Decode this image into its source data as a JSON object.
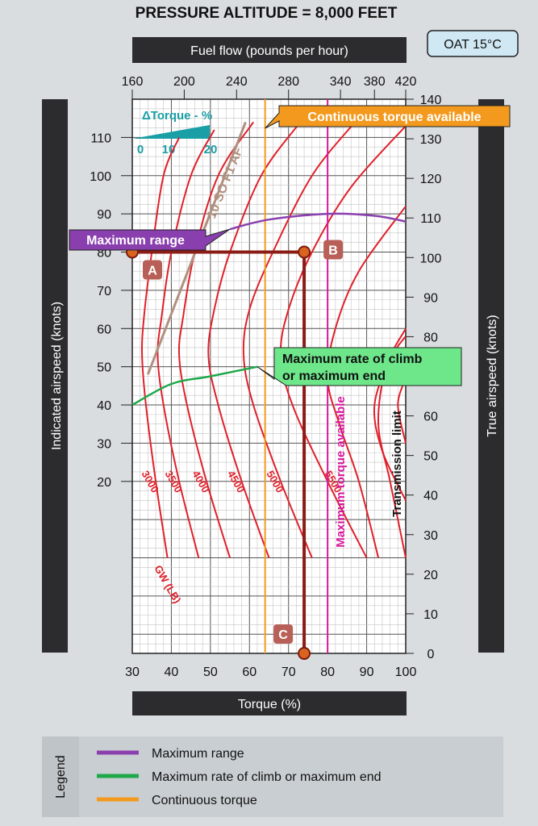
{
  "colors": {
    "background": "#d9dde0",
    "plot_background": "#ffffff",
    "dark_bar": "#2c2c2e",
    "gw_curve": "#e0202a",
    "max_range": "#8a3fae",
    "max_climb": "#1ea84a",
    "continuous_torque": "#f39a1e",
    "max_torque": "#d6199b",
    "trend_line": "#b09080",
    "path": "#8a1c16",
    "teal": "#1a9fa6",
    "oat_box": "#cfe8f3",
    "callout_climb": "#6ee68a"
  },
  "chart_data": {
    "type": "line",
    "title": "PRESSURE ALTITUDE = 8,000 FEET",
    "oat": "OAT 15°C",
    "top_axis_label": "Fuel flow (pounds per hour)",
    "bottom_axis_label": "Torque (%)",
    "left_axis_label": "Indicated airspeed (knots)",
    "right_axis_label": "True airspeed (knots)",
    "transmission_limit_label": "Transmission limit",
    "x_range": [
      30,
      100
    ],
    "x_ticks": [
      30,
      40,
      50,
      60,
      70,
      80,
      90,
      100
    ],
    "fuel_flow_ticks": [
      {
        "value": "160",
        "torque": 30
      },
      {
        "value": "200",
        "torque": 43.3
      },
      {
        "value": "240",
        "torque": 56.7
      },
      {
        "value": "280",
        "torque": 70
      },
      {
        "value": "340",
        "torque": 83.3
      },
      {
        "value": "380",
        "torque": 92
      },
      {
        "value": "420",
        "torque": 100
      }
    ],
    "ias_range": [
      -25,
      120
    ],
    "ias_ticks": [
      20,
      30,
      40,
      50,
      60,
      70,
      80,
      90,
      100,
      110
    ],
    "tas_range": [
      0,
      140
    ],
    "tas_ticks": [
      0,
      10,
      20,
      30,
      40,
      50,
      60,
      70,
      80,
      90,
      100,
      110,
      120,
      130,
      140
    ],
    "delta_torque": {
      "label": "ΔTorque - %",
      "ticks": [
        "0",
        "10",
        "20"
      ]
    },
    "gw_label": "GW (LB)",
    "gw_curves": [
      {
        "label": "3000",
        "points": [
          [
            39,
            0
          ],
          [
            36,
            20
          ],
          [
            33.5,
            40
          ],
          [
            32.5,
            53
          ],
          [
            33,
            63
          ],
          [
            35,
            80
          ],
          [
            38,
            100
          ],
          [
            42,
            110
          ]
        ]
      },
      {
        "label": "3500",
        "points": [
          [
            47,
            0
          ],
          [
            42,
            20
          ],
          [
            38,
            40
          ],
          [
            36.5,
            53
          ],
          [
            37.5,
            63
          ],
          [
            40,
            80
          ],
          [
            45,
            100
          ],
          [
            51,
            112
          ]
        ]
      },
      {
        "label": "4000",
        "points": [
          [
            55,
            0
          ],
          [
            49,
            20
          ],
          [
            44,
            40
          ],
          [
            42,
            53
          ],
          [
            43,
            63
          ],
          [
            46,
            80
          ],
          [
            52,
            100
          ],
          [
            61,
            114
          ]
        ]
      },
      {
        "label": "4500",
        "points": [
          [
            65,
            0
          ],
          [
            58,
            20
          ],
          [
            52,
            40
          ],
          [
            49.5,
            53
          ],
          [
            51,
            65
          ],
          [
            55,
            80
          ],
          [
            63,
            100
          ],
          [
            73,
            114
          ]
        ]
      },
      {
        "label": "5000",
        "points": [
          [
            76,
            0
          ],
          [
            68,
            20
          ],
          [
            61,
            40
          ],
          [
            58.5,
            53
          ],
          [
            60,
            65
          ],
          [
            66,
            80
          ],
          [
            76,
            100
          ],
          [
            87,
            114
          ]
        ]
      },
      {
        "label": "5500",
        "points": [
          [
            90,
            0
          ],
          [
            80,
            20
          ],
          [
            71,
            40
          ],
          [
            68,
            53
          ],
          [
            70,
            65
          ],
          [
            76,
            80
          ],
          [
            86,
            97
          ],
          [
            100,
            113
          ]
        ]
      }
    ],
    "gw_curves_unlabeled": [
      {
        "points": [
          [
            93,
            0
          ],
          [
            88,
            20
          ],
          [
            83,
            35
          ],
          [
            80,
            47
          ],
          [
            82,
            60
          ],
          [
            88,
            75
          ],
          [
            100,
            92
          ]
        ]
      },
      {
        "points": [
          [
            100,
            0
          ],
          [
            96,
            20
          ],
          [
            93,
            35
          ],
          [
            95,
            50
          ],
          [
            100,
            60
          ]
        ]
      },
      {
        "points": [
          [
            100,
            15
          ],
          [
            94,
            28
          ],
          [
            92,
            40
          ],
          [
            96,
            52
          ],
          [
            100,
            58
          ]
        ]
      },
      {
        "points": [
          [
            100,
            30
          ],
          [
            98,
            40
          ],
          [
            100,
            47
          ]
        ]
      }
    ],
    "trend_line": {
      "label": "10 SO F1 AF",
      "points": [
        [
          34,
          48
        ],
        [
          59,
          114
        ]
      ]
    },
    "maximum_range": {
      "label": "Maximum range",
      "points": [
        [
          55,
          86
        ],
        [
          65,
          88.5
        ],
        [
          80,
          90
        ],
        [
          92,
          89.5
        ],
        [
          100,
          88
        ]
      ]
    },
    "maximum_climb": {
      "label": "Maximum rate of climb or maximum end",
      "points": [
        [
          30,
          40
        ],
        [
          40,
          45.5
        ],
        [
          50,
          47.5
        ],
        [
          62,
          50
        ]
      ]
    },
    "continuous_torque": {
      "label": "Continuous torque available",
      "value": 64
    },
    "maximum_torque": {
      "label": "Maximum torque available",
      "value": 80
    },
    "example_path": {
      "A": {
        "label": "A",
        "torque": 30,
        "ias": 80
      },
      "B": {
        "label": "B",
        "torque": 74,
        "ias": 80
      },
      "C": {
        "label": "C",
        "torque": 74,
        "ias": -25
      }
    }
  },
  "legend": {
    "title": "Legend",
    "items": [
      {
        "label": "Maximum range",
        "color": "#8a3fae"
      },
      {
        "label": "Maximum rate of climb or maximum end",
        "color": "#1ea84a"
      },
      {
        "label": "Continuous torque",
        "color": "#f39a1e"
      }
    ]
  }
}
